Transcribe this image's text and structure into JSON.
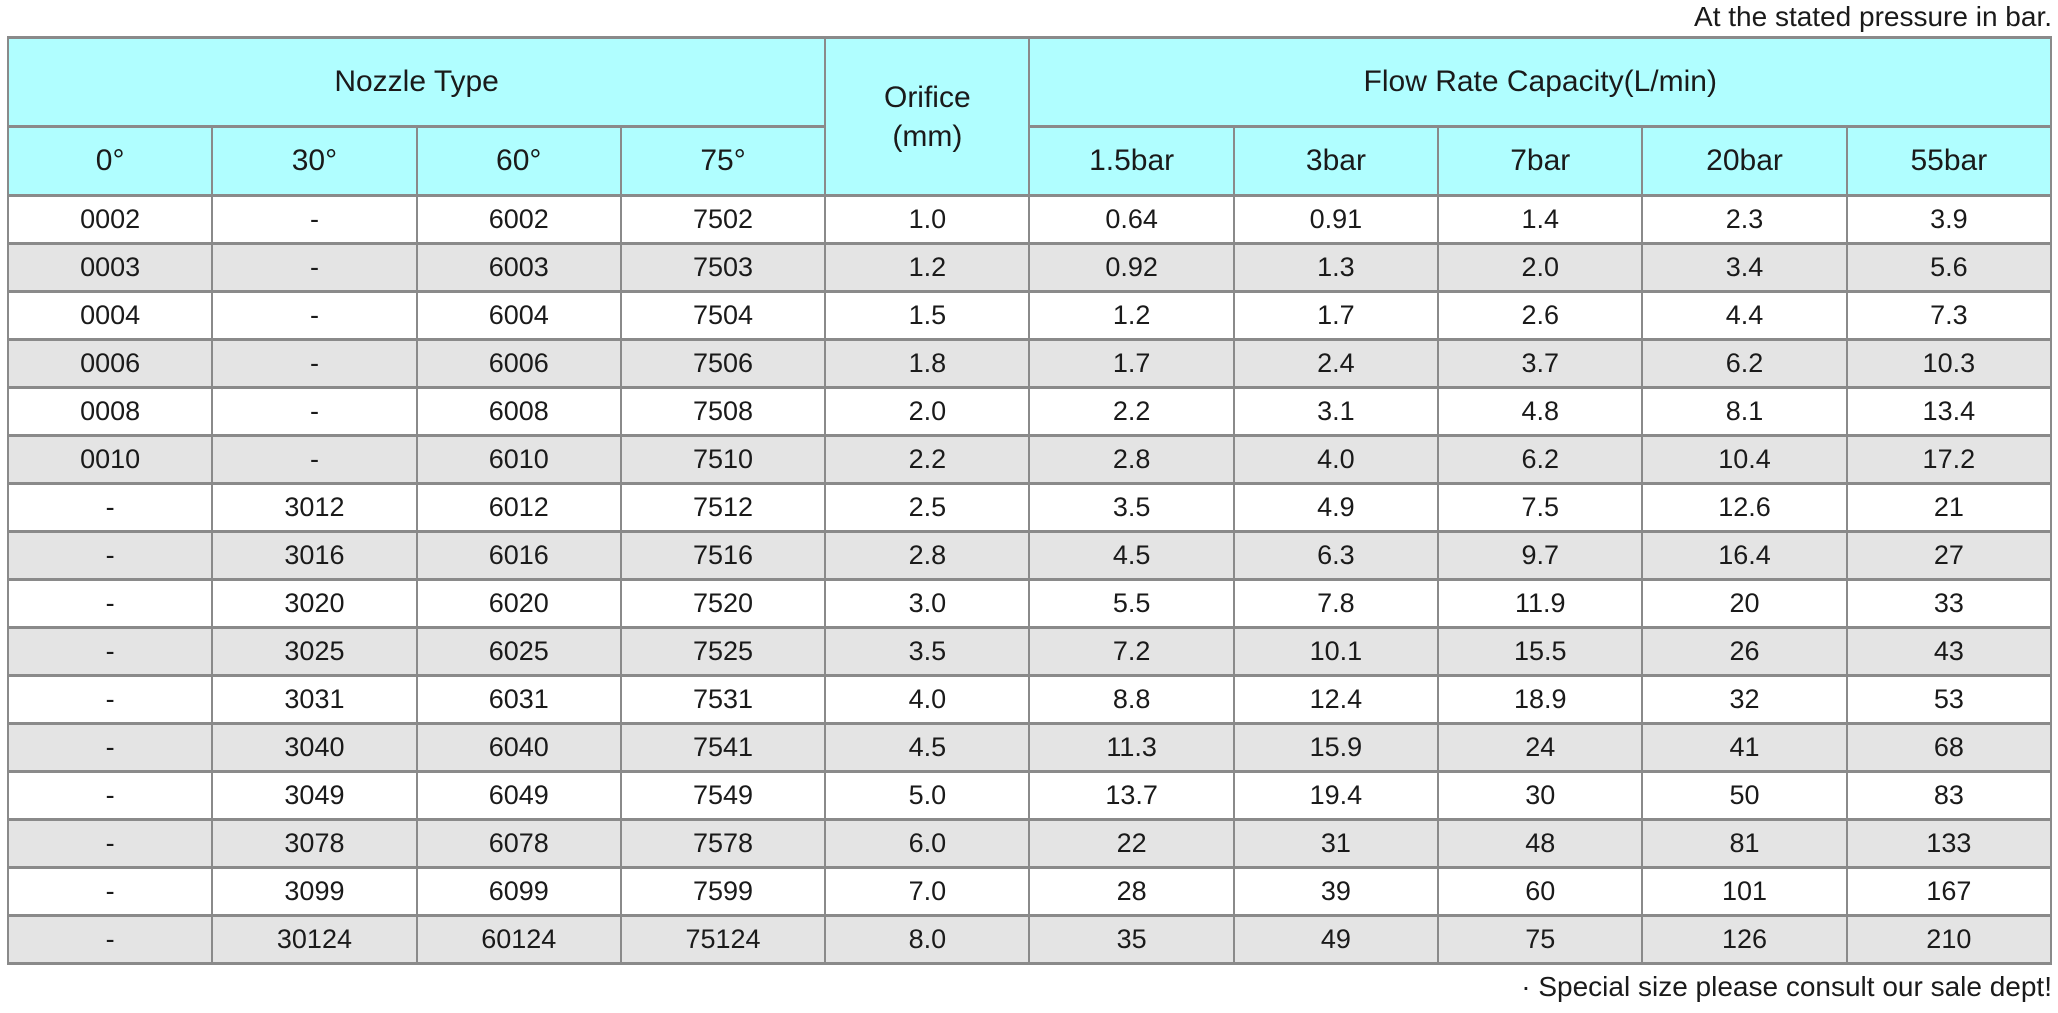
{
  "page": {
    "top_note": "At the stated pressure in bar.",
    "bottom_note": "· Special size please consult our sale dept!"
  },
  "colors": {
    "header_bg": "#b0feff",
    "row_alt_bg": "#e4e4e4",
    "border": "#8a8a8a",
    "text": "#1a1a1a"
  },
  "table": {
    "header": {
      "nozzle_type": "Nozzle Type",
      "orifice": "Orifice\n(mm)",
      "flow_rate": "Flow Rate Capacity(L/min)",
      "angles": [
        "0°",
        "30°",
        "60°",
        "75°"
      ],
      "pressures": [
        "1.5bar",
        "3bar",
        "7bar",
        "20bar",
        "55bar"
      ]
    },
    "rows": [
      [
        "0002",
        "-",
        "6002",
        "7502",
        "1.0",
        "0.64",
        "0.91",
        "1.4",
        "2.3",
        "3.9"
      ],
      [
        "0003",
        "-",
        "6003",
        "7503",
        "1.2",
        "0.92",
        "1.3",
        "2.0",
        "3.4",
        "5.6"
      ],
      [
        "0004",
        "-",
        "6004",
        "7504",
        "1.5",
        "1.2",
        "1.7",
        "2.6",
        "4.4",
        "7.3"
      ],
      [
        "0006",
        "-",
        "6006",
        "7506",
        "1.8",
        "1.7",
        "2.4",
        "3.7",
        "6.2",
        "10.3"
      ],
      [
        "0008",
        "-",
        "6008",
        "7508",
        "2.0",
        "2.2",
        "3.1",
        "4.8",
        "8.1",
        "13.4"
      ],
      [
        "0010",
        "-",
        "6010",
        "7510",
        "2.2",
        "2.8",
        "4.0",
        "6.2",
        "10.4",
        "17.2"
      ],
      [
        "-",
        "3012",
        "6012",
        "7512",
        "2.5",
        "3.5",
        "4.9",
        "7.5",
        "12.6",
        "21"
      ],
      [
        "-",
        "3016",
        "6016",
        "7516",
        "2.8",
        "4.5",
        "6.3",
        "9.7",
        "16.4",
        "27"
      ],
      [
        "-",
        "3020",
        "6020",
        "7520",
        "3.0",
        "5.5",
        "7.8",
        "11.9",
        "20",
        "33"
      ],
      [
        "-",
        "3025",
        "6025",
        "7525",
        "3.5",
        "7.2",
        "10.1",
        "15.5",
        "26",
        "43"
      ],
      [
        "-",
        "3031",
        "6031",
        "7531",
        "4.0",
        "8.8",
        "12.4",
        "18.9",
        "32",
        "53"
      ],
      [
        "-",
        "3040",
        "6040",
        "7541",
        "4.5",
        "11.3",
        "15.9",
        "24",
        "41",
        "68"
      ],
      [
        "-",
        "3049",
        "6049",
        "7549",
        "5.0",
        "13.7",
        "19.4",
        "30",
        "50",
        "83"
      ],
      [
        "-",
        "3078",
        "6078",
        "7578",
        "6.0",
        "22",
        "31",
        "48",
        "81",
        "133"
      ],
      [
        "-",
        "3099",
        "6099",
        "7599",
        "7.0",
        "28",
        "39",
        "60",
        "101",
        "167"
      ],
      [
        "-",
        "30124",
        "60124",
        "75124",
        "8.0",
        "35",
        "49",
        "75",
        "126",
        "210"
      ]
    ]
  }
}
